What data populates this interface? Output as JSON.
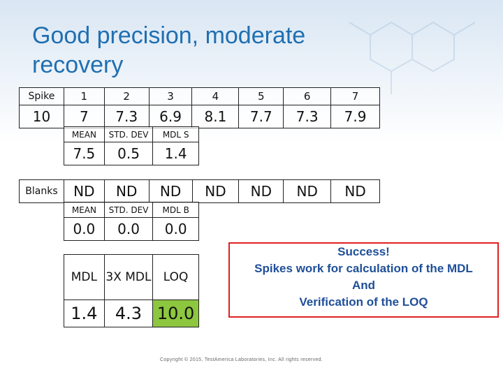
{
  "slide": {
    "title_line1": "Good precision, moderate",
    "title_line2": "recovery"
  },
  "spike_table": {
    "row_label": "Spike",
    "value_label": "10",
    "indices": [
      "1",
      "2",
      "3",
      "4",
      "5",
      "6",
      "7"
    ],
    "values": [
      "7",
      "7.3",
      "6.9",
      "8.1",
      "7.7",
      "7.3",
      "7.9"
    ]
  },
  "spike_stats": {
    "headers": [
      "MEAN",
      "STD. DEV",
      "MDL S"
    ],
    "values": [
      "7.5",
      "0.5",
      "1.4"
    ]
  },
  "blanks_table": {
    "row_label": "Blanks",
    "values": [
      "ND",
      "ND",
      "ND",
      "ND",
      "ND",
      "ND",
      "ND"
    ]
  },
  "blank_stats": {
    "headers": [
      "MEAN",
      "STD. DEV",
      "MDL B"
    ],
    "values": [
      "0.0",
      "0.0",
      "0.0"
    ]
  },
  "mdl_summary": {
    "headers": [
      "MDL",
      "3X MDL",
      "LOQ"
    ],
    "values": [
      "1.4",
      "4.3",
      "10.0"
    ]
  },
  "success_box": {
    "line1": "Success!",
    "line2": "Spikes work for calculation of the MDL",
    "line3": "And",
    "line4": "Verification of the LOQ"
  },
  "footer": {
    "copyright": "Copyright © 2015, TestAmerica Laboratories, Inc. All rights reserved."
  },
  "colors": {
    "title": "#1f6fb2",
    "loq_highlight": "#8dc63f",
    "success_border": "#e02020",
    "success_text": "#1f4f99"
  }
}
